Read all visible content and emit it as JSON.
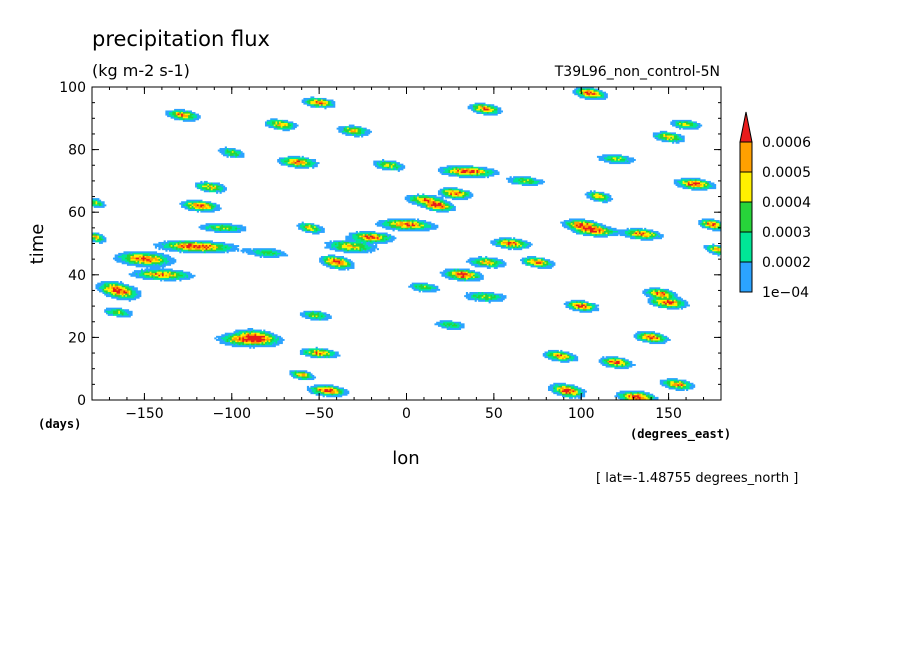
{
  "chart_data": {
    "type": "heatmap",
    "title": "precipitation flux",
    "units": "(kg m-2 s-1)",
    "run_label": "T39L96_non_control-5N",
    "xlabel": "lon",
    "ylabel": "time",
    "x_unit_label": "(degrees_east)",
    "y_unit_label": "(days)",
    "subtitle": "[ lat=-1.48755 degrees_north ]",
    "xlim": [
      -180,
      180
    ],
    "ylim": [
      0,
      100
    ],
    "x_ticks": [
      -150,
      -100,
      -50,
      0,
      50,
      100,
      150
    ],
    "x_tick_labels": [
      "−150",
      "−100",
      "−50",
      "0",
      "50",
      "100",
      "150"
    ],
    "y_ticks": [
      0,
      20,
      40,
      60,
      80,
      100
    ],
    "y_tick_labels": [
      "0",
      "20",
      "40",
      "60",
      "80",
      "100"
    ],
    "colorbar": {
      "levels": [
        0.0001,
        0.0002,
        0.0003,
        0.0004,
        0.0005,
        0.0006
      ],
      "labels": [
        "1e−04",
        "0.0002",
        "0.0003",
        "0.0004",
        "0.0005",
        "0.0006"
      ],
      "colors": [
        "#2ba3ff",
        "#00e696",
        "#27d43a",
        "#fff000",
        "#ffa000",
        "#e81c1c"
      ]
    },
    "features": [
      {
        "lon": -165,
        "t": 35,
        "amp": 0.00068,
        "dlon": 6,
        "dt": 1.6,
        "tilt": 0.2
      },
      {
        "lon": -150,
        "t": 45,
        "amp": 0.00064,
        "dlon": 9,
        "dt": 1.3,
        "tilt": 0.25
      },
      {
        "lon": -140,
        "t": 40,
        "amp": 0.00055,
        "dlon": 10,
        "dt": 1.0,
        "tilt": 0.2
      },
      {
        "lon": -120,
        "t": 49,
        "amp": 0.00068,
        "dlon": 12,
        "dt": 1.1,
        "tilt": 0.15
      },
      {
        "lon": -118,
        "t": 62,
        "amp": 0.00065,
        "dlon": 6,
        "dt": 1.0,
        "tilt": 0.2
      },
      {
        "lon": -112,
        "t": 68,
        "amp": 0.0005,
        "dlon": 5,
        "dt": 1.0,
        "tilt": 0.2
      },
      {
        "lon": -128,
        "t": 91,
        "amp": 0.0006,
        "dlon": 5,
        "dt": 1.0,
        "tilt": 0.2
      },
      {
        "lon": -100,
        "t": 79,
        "amp": 0.0004,
        "dlon": 4,
        "dt": 1.0,
        "tilt": 0.2
      },
      {
        "lon": -85,
        "t": 20,
        "amp": 0.00064,
        "dlon": 7,
        "dt": 1.4,
        "tilt": 0.2
      },
      {
        "lon": -95,
        "t": 19,
        "amp": 0.00045,
        "dlon": 8,
        "dt": 1.2,
        "tilt": 0.2
      },
      {
        "lon": -72,
        "t": 88,
        "amp": 0.00052,
        "dlon": 5,
        "dt": 1.0,
        "tilt": 0.2
      },
      {
        "lon": -62,
        "t": 76,
        "amp": 0.00062,
        "dlon": 6,
        "dt": 1.0,
        "tilt": 0.2
      },
      {
        "lon": -55,
        "t": 55,
        "amp": 0.0005,
        "dlon": 4,
        "dt": 1.0,
        "tilt": 0.2
      },
      {
        "lon": -50,
        "t": 95,
        "amp": 0.00062,
        "dlon": 5,
        "dt": 0.9,
        "tilt": 0.2
      },
      {
        "lon": -50,
        "t": 15,
        "amp": 0.00058,
        "dlon": 6,
        "dt": 0.9,
        "tilt": 0.2
      },
      {
        "lon": -52,
        "t": 27,
        "amp": 0.0004,
        "dlon": 5,
        "dt": 1.0,
        "tilt": 0.2
      },
      {
        "lon": -40,
        "t": 44,
        "amp": 0.00068,
        "dlon": 5,
        "dt": 1.2,
        "tilt": 0.2
      },
      {
        "lon": -32,
        "t": 49,
        "amp": 0.0005,
        "dlon": 8,
        "dt": 1.2,
        "tilt": 0.2
      },
      {
        "lon": -30,
        "t": 86,
        "amp": 0.0005,
        "dlon": 5,
        "dt": 1.0,
        "tilt": 0.2
      },
      {
        "lon": -20,
        "t": 52,
        "amp": 0.00062,
        "dlon": 7,
        "dt": 1.0,
        "tilt": 0.2
      },
      {
        "lon": -45,
        "t": 3,
        "amp": 0.00066,
        "dlon": 6,
        "dt": 1.0,
        "tilt": 0.2
      },
      {
        "lon": -60,
        "t": 8,
        "amp": 0.0005,
        "dlon": 4,
        "dt": 0.9,
        "tilt": 0.2
      },
      {
        "lon": -10,
        "t": 75,
        "amp": 0.00045,
        "dlon": 5,
        "dt": 1.0,
        "tilt": 0.2
      },
      {
        "lon": 0,
        "t": 56,
        "amp": 0.0006,
        "dlon": 9,
        "dt": 1.1,
        "tilt": 0.2
      },
      {
        "lon": 10,
        "t": 64,
        "amp": 0.0005,
        "dlon": 6,
        "dt": 1.0,
        "tilt": 0.2
      },
      {
        "lon": 18,
        "t": 62,
        "amp": 0.00066,
        "dlon": 5,
        "dt": 1.0,
        "tilt": 0.2
      },
      {
        "lon": 28,
        "t": 66,
        "amp": 0.00064,
        "dlon": 5,
        "dt": 1.0,
        "tilt": 0.2
      },
      {
        "lon": 35,
        "t": 73,
        "amp": 0.00066,
        "dlon": 9,
        "dt": 1.0,
        "tilt": 0.2
      },
      {
        "lon": 32,
        "t": 40,
        "amp": 0.00068,
        "dlon": 6,
        "dt": 1.1,
        "tilt": 0.2
      },
      {
        "lon": 46,
        "t": 44,
        "amp": 0.0005,
        "dlon": 6,
        "dt": 1.0,
        "tilt": 0.2
      },
      {
        "lon": 45,
        "t": 93,
        "amp": 0.0006,
        "dlon": 5,
        "dt": 1.0,
        "tilt": 0.2
      },
      {
        "lon": 45,
        "t": 33,
        "amp": 0.0004,
        "dlon": 7,
        "dt": 1.0,
        "tilt": 0.2
      },
      {
        "lon": 60,
        "t": 50,
        "amp": 0.0006,
        "dlon": 6,
        "dt": 1.0,
        "tilt": 0.2
      },
      {
        "lon": 75,
        "t": 44,
        "amp": 0.0006,
        "dlon": 5,
        "dt": 1.0,
        "tilt": 0.2
      },
      {
        "lon": 88,
        "t": 14,
        "amp": 0.00058,
        "dlon": 5,
        "dt": 1.0,
        "tilt": 0.2
      },
      {
        "lon": 92,
        "t": 3,
        "amp": 0.00068,
        "dlon": 5,
        "dt": 1.2,
        "tilt": 0.2
      },
      {
        "lon": 100,
        "t": 30,
        "amp": 0.00064,
        "dlon": 5,
        "dt": 1.0,
        "tilt": 0.2
      },
      {
        "lon": 100,
        "t": 56,
        "amp": 0.0006,
        "dlon": 6,
        "dt": 1.0,
        "tilt": 0.2
      },
      {
        "lon": 108,
        "t": 54,
        "amp": 0.0006,
        "dlon": 7,
        "dt": 1.0,
        "tilt": 0.2
      },
      {
        "lon": 105,
        "t": 98,
        "amp": 0.00064,
        "dlon": 5,
        "dt": 1.1,
        "tilt": 0.2
      },
      {
        "lon": 110,
        "t": 65,
        "amp": 0.0005,
        "dlon": 4,
        "dt": 1.0,
        "tilt": 0.2
      },
      {
        "lon": 120,
        "t": 12,
        "amp": 0.00064,
        "dlon": 5,
        "dt": 1.0,
        "tilt": 0.2
      },
      {
        "lon": 132,
        "t": 0.8,
        "amp": 0.00068,
        "dlon": 6,
        "dt": 1.2,
        "tilt": 0.2
      },
      {
        "lon": 135,
        "t": 53,
        "amp": 0.0006,
        "dlon": 6,
        "dt": 1.0,
        "tilt": 0.2
      },
      {
        "lon": 140,
        "t": 20,
        "amp": 0.00066,
        "dlon": 5,
        "dt": 1.0,
        "tilt": 0.2
      },
      {
        "lon": 145,
        "t": 34,
        "amp": 0.0006,
        "dlon": 5,
        "dt": 1.0,
        "tilt": 0.2
      },
      {
        "lon": 150,
        "t": 31,
        "amp": 0.00064,
        "dlon": 6,
        "dt": 1.0,
        "tilt": 0.2
      },
      {
        "lon": 150,
        "t": 84,
        "amp": 0.00052,
        "dlon": 5,
        "dt": 1.0,
        "tilt": 0.2
      },
      {
        "lon": 155,
        "t": 5,
        "amp": 0.00058,
        "dlon": 5,
        "dt": 1.0,
        "tilt": 0.2
      },
      {
        "lon": 165,
        "t": 69,
        "amp": 0.00066,
        "dlon": 6,
        "dt": 1.0,
        "tilt": 0.2
      },
      {
        "lon": 175,
        "t": 56,
        "amp": 0.00064,
        "dlon": 4,
        "dt": 1.0,
        "tilt": 0.2
      },
      {
        "lon": 178,
        "t": 48,
        "amp": 0.0005,
        "dlon": 4,
        "dt": 1.0,
        "tilt": 0.2
      },
      {
        "lon": -178,
        "t": 52,
        "amp": 0.0005,
        "dlon": 3,
        "dt": 1.0,
        "tilt": 0.2
      },
      {
        "lon": -178,
        "t": 63,
        "amp": 0.0004,
        "dlon": 3,
        "dt": 1.0,
        "tilt": 0.2
      },
      {
        "lon": -165,
        "t": 28,
        "amp": 0.0004,
        "dlon": 5,
        "dt": 0.9,
        "tilt": 0.2
      },
      {
        "lon": 10,
        "t": 36,
        "amp": 0.0004,
        "dlon": 5,
        "dt": 0.9,
        "tilt": 0.2
      },
      {
        "lon": 68,
        "t": 70,
        "amp": 0.0004,
        "dlon": 6,
        "dt": 0.9,
        "tilt": 0.2
      },
      {
        "lon": -105,
        "t": 55,
        "amp": 0.0004,
        "dlon": 8,
        "dt": 0.9,
        "tilt": 0.2
      },
      {
        "lon": -80,
        "t": 47,
        "amp": 0.00035,
        "dlon": 7,
        "dt": 0.9,
        "tilt": 0.2
      },
      {
        "lon": 25,
        "t": 24,
        "amp": 0.00035,
        "dlon": 5,
        "dt": 0.9,
        "tilt": 0.2
      },
      {
        "lon": 120,
        "t": 77,
        "amp": 0.0004,
        "dlon": 6,
        "dt": 0.9,
        "tilt": 0.2
      },
      {
        "lon": 160,
        "t": 88,
        "amp": 0.00045,
        "dlon": 5,
        "dt": 0.9,
        "tilt": 0.2
      }
    ]
  }
}
